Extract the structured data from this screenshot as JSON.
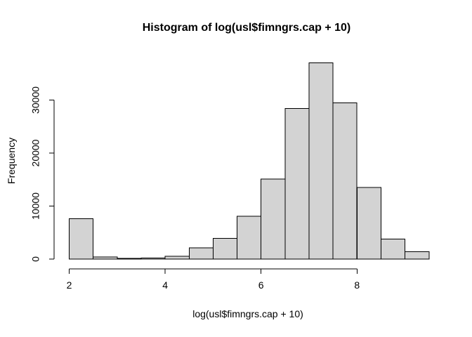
{
  "window": {
    "background_color": "#ffffff"
  },
  "chart_data": {
    "type": "bar",
    "subtype": "histogram",
    "title": "Histogram of log(usl$fimngrs.cap + 10)",
    "xlabel": "log(usl$fimngrs.cap + 10)",
    "ylabel": "Frequency",
    "bin_start": 2.0,
    "bin_width": 0.5,
    "bin_edges": [
      2.0,
      2.5,
      3.0,
      3.5,
      4.0,
      4.5,
      5.0,
      5.5,
      6.0,
      6.5,
      7.0,
      7.5,
      8.0,
      8.5,
      9.0,
      9.5
    ],
    "counts": [
      7600,
      400,
      120,
      230,
      530,
      2100,
      3900,
      8100,
      15100,
      28400,
      37000,
      29500,
      13500,
      3800,
      1400
    ],
    "x_ticks": [
      2,
      4,
      6,
      8
    ],
    "x_tick_labels": [
      "2",
      "4",
      "6",
      "8"
    ],
    "y_ticks": [
      0,
      10000,
      20000,
      30000
    ],
    "y_tick_labels": [
      "0",
      "10000",
      "20000",
      "30000"
    ],
    "xlim": [
      2,
      9.5
    ],
    "ylim": [
      0,
      37000
    ],
    "grid": false,
    "legend": "none",
    "bar_fill": "#d3d3d3",
    "bar_stroke": "#000000",
    "axis_color": "#000000",
    "text_color": "#000000"
  }
}
